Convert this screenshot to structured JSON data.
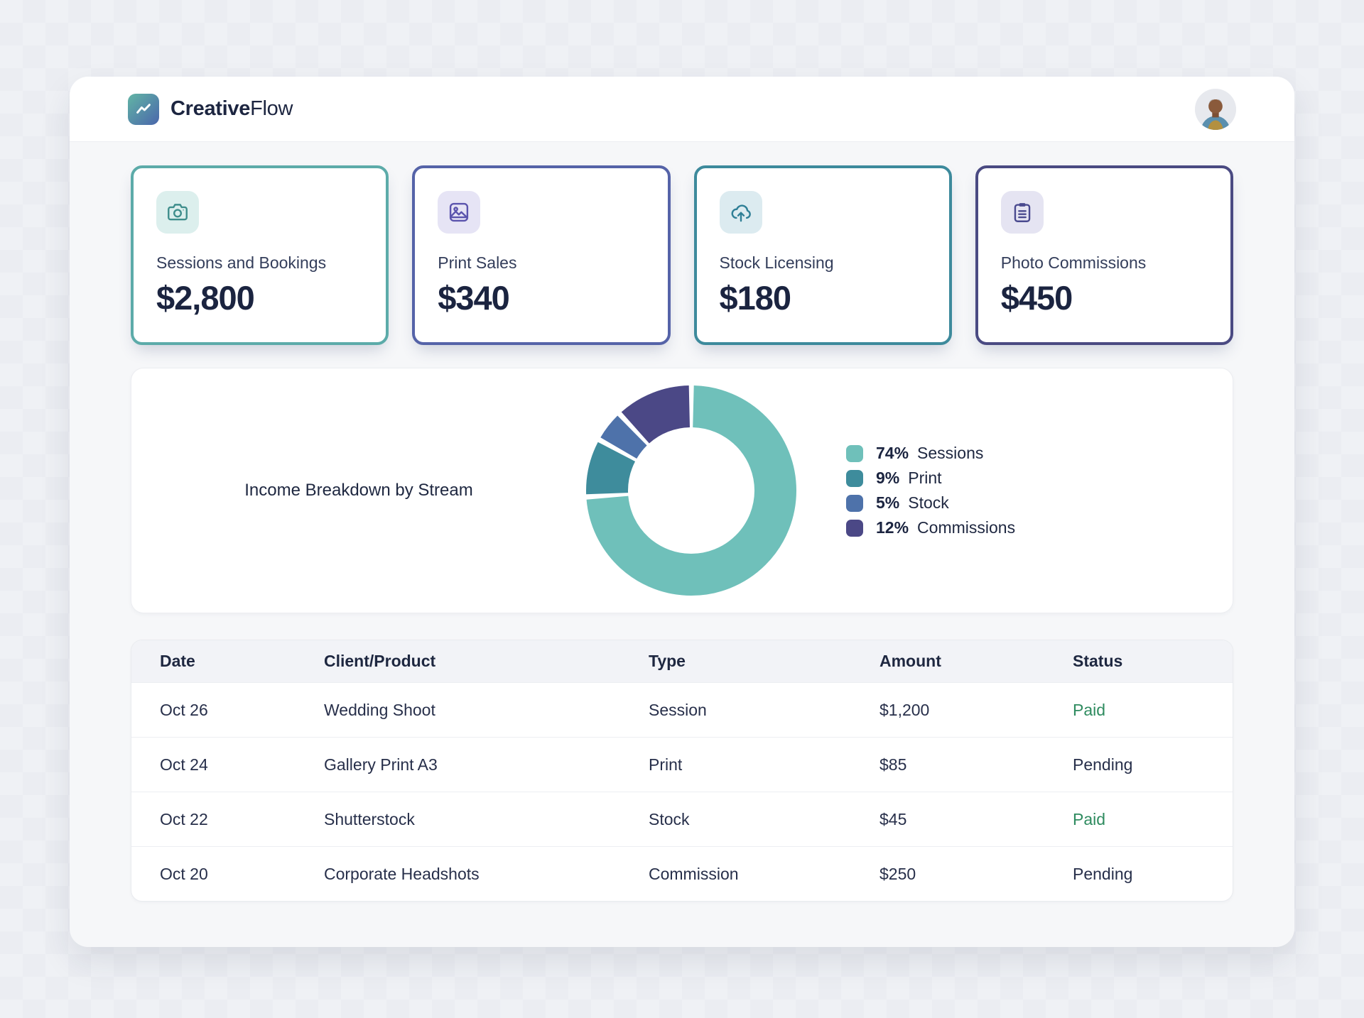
{
  "header": {
    "brand_bold": "Creative",
    "brand_light": "Flow"
  },
  "cards": [
    {
      "label": "Sessions and Bookings",
      "value": "$2,800",
      "accent": "#5caba9",
      "icon": "camera-icon",
      "icon_bg": "#dcefed",
      "icon_color": "#3f8e8c"
    },
    {
      "label": "Print Sales",
      "value": "$340",
      "accent": "#5563a8",
      "icon": "image-icon",
      "icon_bg": "#e6e4f5",
      "icon_color": "#5b54ad"
    },
    {
      "label": "Stock Licensing",
      "value": "$180",
      "accent": "#3d8a9c",
      "icon": "cloud-upload-icon",
      "icon_bg": "#dcebf0",
      "icon_color": "#2f7f96"
    },
    {
      "label": "Photo Commissions",
      "value": "$450",
      "accent": "#4a4a82",
      "icon": "clipboard-icon",
      "icon_bg": "#e5e4f2",
      "icon_color": "#4a4a8f"
    }
  ],
  "chart_data": {
    "type": "pie",
    "donut": true,
    "title": "Income Breakdown by Stream",
    "start_angle_deg": 0,
    "direction": "clockwise",
    "legend_position": "right",
    "slices": [
      {
        "label": "Sessions",
        "pct": 74,
        "pct_label": "74%",
        "color": "#6fc0ba"
      },
      {
        "label": "Print",
        "pct": 9,
        "pct_label": "9%",
        "color": "#3e8c9c"
      },
      {
        "label": "Stock",
        "pct": 5,
        "pct_label": "5%",
        "color": "#4e72aa"
      },
      {
        "label": "Commissions",
        "pct": 12,
        "pct_label": "12%",
        "color": "#4b4886"
      }
    ]
  },
  "table": {
    "columns": [
      "Date",
      "Client/Product",
      "Type",
      "Amount",
      "Status"
    ],
    "rows": [
      {
        "date": "Oct 26",
        "client_product": "Wedding Shoot",
        "type": "Session",
        "amount": "$1,200",
        "status": "Paid"
      },
      {
        "date": "Oct 24",
        "client_product": "Gallery Print A3",
        "type": "Print",
        "amount": "$85",
        "status": "Pending"
      },
      {
        "date": "Oct 22",
        "client_product": "Shutterstock",
        "type": "Stock",
        "amount": "$45",
        "status": "Paid"
      },
      {
        "date": "Oct 20",
        "client_product": "Corporate Headshots",
        "type": "Commission",
        "amount": "$250",
        "status": "Pending"
      }
    ]
  },
  "colors": {
    "paid_status": "#2e8b5f",
    "pending_status": "#272f4a",
    "brand_gradient_start": "#62b5a5",
    "brand_gradient_end": "#4a66ab",
    "text_dark": "#1b2440"
  }
}
